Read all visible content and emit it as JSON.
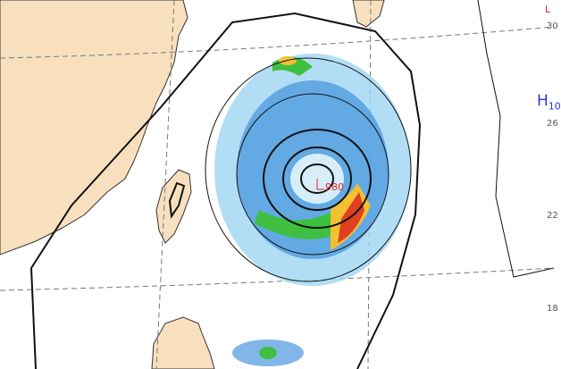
{
  "map": {
    "colors": {
      "land": "#f8e0bf",
      "coast": "#333333",
      "contour": "#111111",
      "grid": "#777777",
      "low": "#e02020",
      "high": "#3333dd"
    },
    "center_low": {
      "symbol": "L",
      "pressure": "980"
    },
    "high_label": {
      "symbol": "H",
      "value": "10"
    },
    "corner_low": {
      "symbol": "L"
    },
    "lat_labels": [
      "30",
      "26",
      "22",
      "18"
    ]
  }
}
